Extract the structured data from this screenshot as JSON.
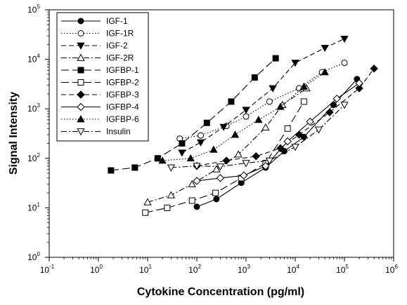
{
  "chart_data": {
    "type": "line",
    "xlabel": "Cytokine Concentration (pg/ml)",
    "ylabel": "Signal Intensity",
    "x_scale": "log",
    "y_scale": "log",
    "xlim": [
      0.1,
      1000000
    ],
    "ylim": [
      1,
      100000
    ],
    "x_ticks": [
      {
        "base": "10",
        "exp": "-1"
      },
      {
        "base": "10",
        "exp": "0"
      },
      {
        "base": "10",
        "exp": "1"
      },
      {
        "base": "10",
        "exp": "2"
      },
      {
        "base": "10",
        "exp": "3"
      },
      {
        "base": "10",
        "exp": "4"
      },
      {
        "base": "10",
        "exp": "5"
      },
      {
        "base": "10",
        "exp": "6"
      }
    ],
    "y_ticks": [
      {
        "base": "10",
        "exp": "0"
      },
      {
        "base": "10",
        "exp": "1"
      },
      {
        "base": "10",
        "exp": "2"
      },
      {
        "base": "10",
        "exp": "3"
      },
      {
        "base": "10",
        "exp": "4"
      },
      {
        "base": "10",
        "exp": "5"
      }
    ],
    "grid": false,
    "legend_position": "top-left",
    "series": [
      {
        "name": "IGF-1",
        "marker": "circle-filled",
        "dash": "solid",
        "x": [
          100,
          250,
          800,
          2500,
          6000,
          15000,
          60000,
          180000
        ],
        "y": [
          10.5,
          15,
          32,
          65,
          140,
          270,
          1200,
          4000
        ]
      },
      {
        "name": "IGF-1R",
        "marker": "circle-open",
        "dash": "dot",
        "x": [
          45,
          120,
          400,
          1000,
          3000,
          12000,
          35000,
          100000
        ],
        "y": [
          250,
          290,
          450,
          700,
          1400,
          2600,
          5500,
          8500
        ]
      },
      {
        "name": "IGF-2",
        "marker": "triangle-down-filled",
        "dash": "dash",
        "x": [
          50,
          120,
          350,
          1000,
          3500,
          10000,
          40000,
          100000
        ],
        "y": [
          130,
          210,
          430,
          950,
          2600,
          8500,
          17000,
          26000
        ]
      },
      {
        "name": "IGF-2R",
        "marker": "triangle-up-open",
        "dash": "dashdot",
        "x": [
          10,
          30,
          80,
          250,
          700,
          2500,
          5500,
          17000
        ],
        "y": [
          13,
          18,
          30,
          60,
          120,
          420,
          1200,
          2600
        ]
      },
      {
        "name": "IGFBP-1",
        "marker": "square-filled",
        "dash": "longdash",
        "x": [
          1.8,
          5.5,
          16,
          50,
          160,
          500,
          1500,
          4000
        ],
        "y": [
          57,
          65,
          100,
          200,
          520,
          1400,
          4300,
          10500
        ]
      },
      {
        "name": "IGFBP-2",
        "marker": "square-open",
        "dash": "longdash",
        "x": [
          9,
          25,
          80,
          240,
          800,
          2500,
          7000,
          15000
        ],
        "y": [
          8,
          10,
          14,
          20,
          40,
          80,
          400,
          1400
        ]
      },
      {
        "name": "IGFBP-3",
        "marker": "diamond-filled",
        "dash": "dash",
        "x": [
          100,
          400,
          1600,
          5000,
          12000,
          50000,
          200000,
          400000
        ],
        "y": [
          70,
          90,
          110,
          160,
          300,
          850,
          2600,
          6500
        ]
      },
      {
        "name": "IGFBP-4",
        "marker": "diamond-open",
        "dash": "solid",
        "x": [
          100,
          300,
          900,
          2500,
          7000,
          20000,
          70000,
          200000
        ],
        "y": [
          35,
          40,
          45,
          70,
          220,
          550,
          1600,
          3300
        ]
      },
      {
        "name": "IGFBP-6",
        "marker": "triangle-up-filled",
        "dash": "dot",
        "x": [
          20,
          75,
          220,
          600,
          1800,
          5000,
          15000,
          40000
        ],
        "y": [
          90,
          100,
          150,
          300,
          600,
          1100,
          2800,
          5500
        ]
      },
      {
        "name": "Insulin",
        "marker": "triangle-down-open",
        "dash": "dashdot",
        "x": [
          30,
          100,
          300,
          1000,
          3000,
          10000,
          30000,
          100000
        ],
        "y": [
          65,
          70,
          68,
          80,
          90,
          170,
          380,
          1200
        ]
      }
    ]
  }
}
